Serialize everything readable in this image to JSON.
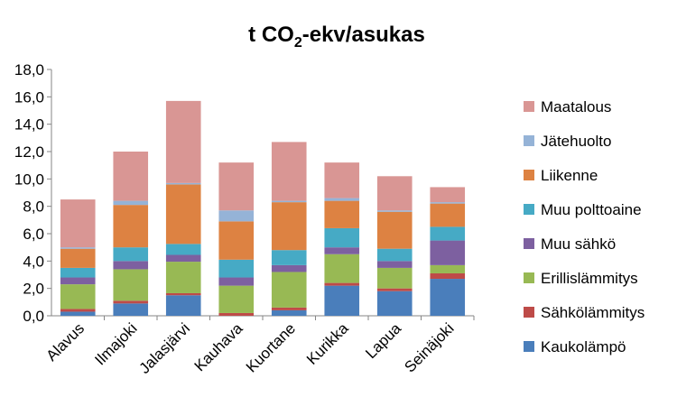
{
  "chart_data": {
    "type": "bar",
    "stacked": true,
    "title": "t CO",
    "title_subscript": "2",
    "title_suffix": "-ekv/asukas",
    "xlabel": "",
    "ylabel": "",
    "ylim": [
      0,
      18
    ],
    "ytick_step": 2,
    "ytick_labels": [
      "0,0",
      "2,0",
      "4,0",
      "6,0",
      "8,0",
      "10,0",
      "12,0",
      "14,0",
      "16,0",
      "18,0"
    ],
    "grid": false,
    "legend_position": "right",
    "categories": [
      "Alavus",
      "Ilmajoki",
      "Jalasjärvi",
      "Kauhava",
      "Kuortane",
      "Kurikka",
      "Lapua",
      "Seinäjoki"
    ],
    "series": [
      {
        "name": "Kaukolämpö",
        "color": "#4a7ebb",
        "values": [
          0.3,
          0.9,
          1.5,
          0.0,
          0.4,
          2.2,
          1.8,
          2.7
        ]
      },
      {
        "name": "Sähkölämmitys",
        "color": "#be4b48",
        "values": [
          0.2,
          0.2,
          0.15,
          0.2,
          0.2,
          0.2,
          0.2,
          0.4
        ]
      },
      {
        "name": "Erillislämmitys",
        "color": "#98b954",
        "values": [
          1.8,
          2.3,
          2.3,
          2.0,
          2.6,
          2.1,
          1.5,
          0.6
        ]
      },
      {
        "name": "Muu sähkö",
        "color": "#7d60a0",
        "values": [
          0.5,
          0.6,
          0.5,
          0.6,
          0.5,
          0.5,
          0.5,
          1.8
        ]
      },
      {
        "name": "Muu polttoaine",
        "color": "#46aac5",
        "values": [
          0.7,
          1.0,
          0.8,
          1.3,
          1.1,
          1.4,
          0.9,
          1.0
        ]
      },
      {
        "name": "Liikenne",
        "color": "#dd8242",
        "values": [
          1.4,
          3.1,
          4.35,
          2.8,
          3.5,
          2.0,
          2.7,
          1.7
        ]
      },
      {
        "name": "Jätehuolto",
        "color": "#95b3d7",
        "values": [
          0.1,
          0.3,
          0.1,
          0.8,
          0.1,
          0.2,
          0.1,
          0.1
        ]
      },
      {
        "name": "Maatalous",
        "color": "#d99694",
        "values": [
          3.5,
          3.6,
          6.0,
          3.5,
          4.3,
          2.6,
          2.5,
          1.1
        ]
      }
    ]
  }
}
